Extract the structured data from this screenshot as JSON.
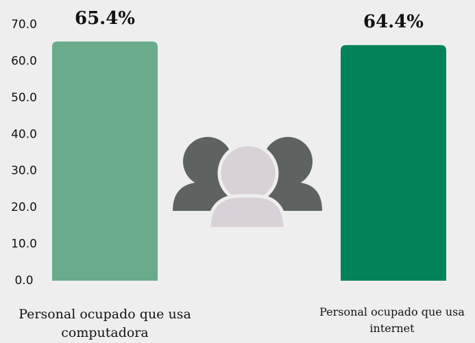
{
  "chart_data": {
    "type": "bar",
    "categories": [
      "Personal ocupado que usa computadora",
      "Personal ocupado que usa internet"
    ],
    "values": [
      65.4,
      64.4
    ],
    "value_labels": [
      "65.4%",
      "64.4%"
    ],
    "colors": [
      "#6aab8b",
      "#00825a"
    ],
    "ylim": [
      0,
      70
    ],
    "yticks": [
      {
        "value": 0,
        "label": "0.0"
      },
      {
        "value": 10,
        "label": "10.0"
      },
      {
        "value": 20,
        "label": "20.0"
      },
      {
        "value": 30,
        "label": "30.0"
      },
      {
        "value": 40,
        "label": "40.0"
      },
      {
        "value": 50,
        "label": "50.0"
      },
      {
        "value": 60,
        "label": "60.0"
      },
      {
        "value": 70,
        "label": "70.0"
      }
    ],
    "grid": false
  }
}
